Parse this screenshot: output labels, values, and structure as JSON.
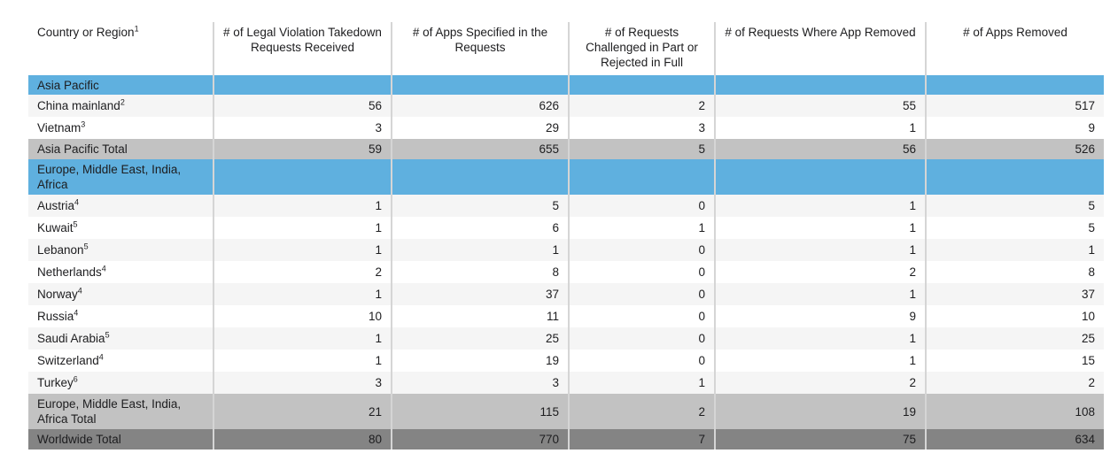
{
  "colors": {
    "region_header_blue": "#5FB0DF",
    "subtotal_gray": "#C2C2C2",
    "grand_total_gray": "#848484",
    "alt_row_gray": "#F5F5F5",
    "column_divider_gray": "#D5D5D5",
    "text": "#1D1D1F"
  },
  "table": {
    "columns": [
      {
        "label": "Country or Region",
        "sup": "1",
        "name": "col-header-country-or-region"
      },
      {
        "label": "# of Legal Violation Takedown Requests Received",
        "sup": "",
        "name": "col-header-takedown-requests-received"
      },
      {
        "label": "# of Apps Specified in the Requests",
        "sup": "",
        "name": "col-header-apps-specified"
      },
      {
        "label": "# of Requests Challenged in Part or Rejected in Full",
        "sup": "",
        "name": "col-header-requests-challenged"
      },
      {
        "label": "# of Requests Where App Removed",
        "sup": "",
        "name": "col-header-requests-app-removed"
      },
      {
        "label": "# of Apps Removed",
        "sup": "",
        "name": "col-header-apps-removed"
      }
    ],
    "rows": [
      {
        "type": "region",
        "two_line": false,
        "label": "Asia Pacific",
        "sup": "",
        "values": [
          "",
          "",
          "",
          "",
          ""
        ]
      },
      {
        "type": "alt",
        "two_line": false,
        "label": "China mainland",
        "sup": "2",
        "values": [
          "56",
          "626",
          "2",
          "55",
          "517"
        ]
      },
      {
        "type": "plain",
        "two_line": false,
        "label": "Vietnam",
        "sup": "3",
        "values": [
          "3",
          "29",
          "3",
          "1",
          "9"
        ]
      },
      {
        "type": "subtotal",
        "two_line": false,
        "label": "Asia Pacific Total",
        "sup": "",
        "values": [
          "59",
          "655",
          "5",
          "56",
          "526"
        ]
      },
      {
        "type": "region",
        "two_line": true,
        "label": "Europe, Middle East, India, Africa",
        "sup": "",
        "values": [
          "",
          "",
          "",
          "",
          ""
        ]
      },
      {
        "type": "alt",
        "two_line": false,
        "label": "Austria",
        "sup": "4",
        "values": [
          "1",
          "5",
          "0",
          "1",
          "5"
        ]
      },
      {
        "type": "plain",
        "two_line": false,
        "label": "Kuwait",
        "sup": "5",
        "values": [
          "1",
          "6",
          "1",
          "1",
          "5"
        ]
      },
      {
        "type": "alt",
        "two_line": false,
        "label": "Lebanon",
        "sup": "5",
        "values": [
          "1",
          "1",
          "0",
          "1",
          "1"
        ]
      },
      {
        "type": "plain",
        "two_line": false,
        "label": "Netherlands",
        "sup": "4",
        "values": [
          "2",
          "8",
          "0",
          "2",
          "8"
        ]
      },
      {
        "type": "alt",
        "two_line": false,
        "label": "Norway",
        "sup": "4",
        "values": [
          "1",
          "37",
          "0",
          "1",
          "37"
        ]
      },
      {
        "type": "plain",
        "two_line": false,
        "label": "Russia",
        "sup": "4",
        "values": [
          "10",
          "11",
          "0",
          "9",
          "10"
        ]
      },
      {
        "type": "alt",
        "two_line": false,
        "label": "Saudi Arabia",
        "sup": "5",
        "values": [
          "1",
          "25",
          "0",
          "1",
          "25"
        ]
      },
      {
        "type": "plain",
        "two_line": false,
        "label": "Switzerland",
        "sup": "4",
        "values": [
          "1",
          "19",
          "0",
          "1",
          "15"
        ]
      },
      {
        "type": "alt",
        "two_line": false,
        "label": "Turkey",
        "sup": "6",
        "values": [
          "3",
          "3",
          "1",
          "2",
          "2"
        ]
      },
      {
        "type": "subtotal",
        "two_line": true,
        "label": "Europe, Middle East, India, Africa Total",
        "sup": "",
        "values": [
          "21",
          "115",
          "2",
          "19",
          "108"
        ]
      },
      {
        "type": "grand",
        "two_line": false,
        "label": "Worldwide Total",
        "sup": "",
        "values": [
          "80",
          "770",
          "7",
          "75",
          "634"
        ]
      }
    ]
  }
}
